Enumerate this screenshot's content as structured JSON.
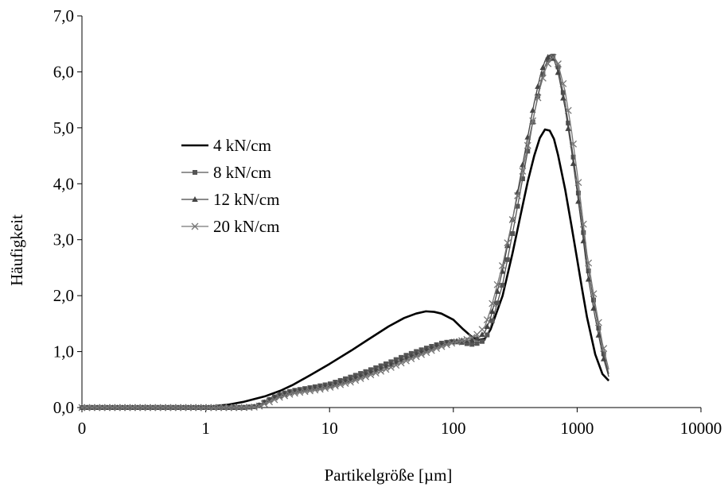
{
  "chart_data": {
    "type": "line",
    "title": "",
    "xlabel": "Partikelgröße [µm]",
    "ylabel": "Häufigkeit",
    "x_scale": "log",
    "xlim": [
      0.1,
      10000
    ],
    "ylim": [
      0,
      7
    ],
    "x_ticks": [
      {
        "value": 0.1,
        "label": "0"
      },
      {
        "value": 1,
        "label": "1"
      },
      {
        "value": 10,
        "label": "10"
      },
      {
        "value": 100,
        "label": "100"
      },
      {
        "value": 1000,
        "label": "1000"
      },
      {
        "value": 10000,
        "label": "10000"
      }
    ],
    "y_ticks": [
      {
        "value": 0,
        "label": "0,0"
      },
      {
        "value": 1,
        "label": "1,0"
      },
      {
        "value": 2,
        "label": "2,0"
      },
      {
        "value": 3,
        "label": "3,0"
      },
      {
        "value": 4,
        "label": "4,0"
      },
      {
        "value": 5,
        "label": "5,0"
      },
      {
        "value": 6,
        "label": "6,0"
      },
      {
        "value": 7,
        "label": "7,0"
      }
    ],
    "grid": false,
    "legend_position": "middle-left",
    "series": [
      {
        "name": "4 kN/cm",
        "marker": "none",
        "color": "#000000",
        "line_width": 2.6,
        "points": [
          [
            0.1,
            0
          ],
          [
            0.5,
            0
          ],
          [
            1,
            0.01
          ],
          [
            1.5,
            0.05
          ],
          [
            2,
            0.1
          ],
          [
            3,
            0.2
          ],
          [
            4,
            0.3
          ],
          [
            5,
            0.4
          ],
          [
            7,
            0.58
          ],
          [
            10,
            0.78
          ],
          [
            15,
            1.02
          ],
          [
            20,
            1.2
          ],
          [
            30,
            1.45
          ],
          [
            40,
            1.6
          ],
          [
            50,
            1.68
          ],
          [
            60,
            1.72
          ],
          [
            70,
            1.71
          ],
          [
            80,
            1.68
          ],
          [
            100,
            1.57
          ],
          [
            120,
            1.4
          ],
          [
            140,
            1.27
          ],
          [
            160,
            1.21
          ],
          [
            180,
            1.23
          ],
          [
            200,
            1.4
          ],
          [
            250,
            2.0
          ],
          [
            300,
            2.75
          ],
          [
            350,
            3.45
          ],
          [
            400,
            4.05
          ],
          [
            450,
            4.5
          ],
          [
            500,
            4.82
          ],
          [
            550,
            4.97
          ],
          [
            600,
            4.95
          ],
          [
            650,
            4.8
          ],
          [
            700,
            4.52
          ],
          [
            800,
            3.9
          ],
          [
            900,
            3.25
          ],
          [
            1000,
            2.65
          ],
          [
            1100,
            2.1
          ],
          [
            1200,
            1.62
          ],
          [
            1400,
            0.95
          ],
          [
            1600,
            0.6
          ],
          [
            1800,
            0.48
          ]
        ]
      },
      {
        "name": "8 kN/cm",
        "marker": "square",
        "color": "#555555",
        "line_width": 1.3,
        "points": [
          [
            0.1,
            0
          ],
          [
            0.5,
            0
          ],
          [
            1,
            0
          ],
          [
            2,
            0
          ],
          [
            2.6,
            0.02
          ],
          [
            3,
            0.1
          ],
          [
            3.5,
            0.18
          ],
          [
            4,
            0.24
          ],
          [
            5,
            0.3
          ],
          [
            6,
            0.33
          ],
          [
            8,
            0.38
          ],
          [
            10,
            0.42
          ],
          [
            15,
            0.55
          ],
          [
            20,
            0.65
          ],
          [
            30,
            0.8
          ],
          [
            40,
            0.92
          ],
          [
            50,
            1.0
          ],
          [
            60,
            1.06
          ],
          [
            70,
            1.11
          ],
          [
            80,
            1.15
          ],
          [
            90,
            1.17
          ],
          [
            100,
            1.18
          ],
          [
            110,
            1.17
          ],
          [
            120,
            1.16
          ],
          [
            130,
            1.14
          ],
          [
            140,
            1.13
          ],
          [
            150,
            1.13
          ],
          [
            160,
            1.16
          ],
          [
            180,
            1.2
          ],
          [
            200,
            1.45
          ],
          [
            250,
            2.2
          ],
          [
            300,
            3.1
          ],
          [
            350,
            3.9
          ],
          [
            400,
            4.6
          ],
          [
            450,
            5.25
          ],
          [
            500,
            5.75
          ],
          [
            550,
            6.1
          ],
          [
            600,
            6.28
          ],
          [
            650,
            6.28
          ],
          [
            700,
            6.1
          ],
          [
            800,
            5.45
          ],
          [
            900,
            4.7
          ],
          [
            1000,
            4.0
          ],
          [
            1100,
            3.3
          ],
          [
            1200,
            2.6
          ],
          [
            1400,
            1.75
          ],
          [
            1600,
            1.05
          ],
          [
            1800,
            0.6
          ]
        ]
      },
      {
        "name": "12 kN/cm",
        "marker": "triangle",
        "color": "#444444",
        "line_width": 1.3,
        "points": [
          [
            0.1,
            0
          ],
          [
            0.5,
            0
          ],
          [
            1,
            0
          ],
          [
            2,
            0
          ],
          [
            2.6,
            0.02
          ],
          [
            3,
            0.1
          ],
          [
            3.5,
            0.17
          ],
          [
            4,
            0.22
          ],
          [
            5,
            0.28
          ],
          [
            6,
            0.31
          ],
          [
            8,
            0.35
          ],
          [
            10,
            0.39
          ],
          [
            15,
            0.5
          ],
          [
            20,
            0.6
          ],
          [
            30,
            0.75
          ],
          [
            40,
            0.87
          ],
          [
            50,
            0.95
          ],
          [
            60,
            1.02
          ],
          [
            70,
            1.08
          ],
          [
            80,
            1.13
          ],
          [
            90,
            1.16
          ],
          [
            100,
            1.18
          ],
          [
            110,
            1.19
          ],
          [
            120,
            1.2
          ],
          [
            130,
            1.2
          ],
          [
            140,
            1.2
          ],
          [
            150,
            1.22
          ],
          [
            160,
            1.25
          ],
          [
            180,
            1.35
          ],
          [
            200,
            1.6
          ],
          [
            250,
            2.45
          ],
          [
            300,
            3.35
          ],
          [
            350,
            4.15
          ],
          [
            400,
            4.85
          ],
          [
            450,
            5.45
          ],
          [
            500,
            5.9
          ],
          [
            550,
            6.2
          ],
          [
            600,
            6.3
          ],
          [
            650,
            6.22
          ],
          [
            700,
            6.0
          ],
          [
            800,
            5.35
          ],
          [
            900,
            4.6
          ],
          [
            1000,
            3.85
          ],
          [
            1100,
            3.15
          ],
          [
            1200,
            2.45
          ],
          [
            1400,
            1.6
          ],
          [
            1600,
            0.95
          ],
          [
            1800,
            0.55
          ]
        ]
      },
      {
        "name": "20 kN/cm",
        "marker": "x",
        "color": "#777777",
        "line_width": 1.3,
        "points": [
          [
            0.1,
            0
          ],
          [
            0.5,
            0
          ],
          [
            1,
            0
          ],
          [
            2,
            0
          ],
          [
            2.6,
            0.01
          ],
          [
            3,
            0.07
          ],
          [
            3.5,
            0.13
          ],
          [
            4,
            0.19
          ],
          [
            5,
            0.25
          ],
          [
            6,
            0.28
          ],
          [
            8,
            0.32
          ],
          [
            10,
            0.36
          ],
          [
            15,
            0.46
          ],
          [
            20,
            0.56
          ],
          [
            30,
            0.7
          ],
          [
            40,
            0.82
          ],
          [
            50,
            0.91
          ],
          [
            60,
            0.98
          ],
          [
            70,
            1.04
          ],
          [
            80,
            1.09
          ],
          [
            90,
            1.13
          ],
          [
            100,
            1.16
          ],
          [
            110,
            1.18
          ],
          [
            120,
            1.2
          ],
          [
            130,
            1.22
          ],
          [
            140,
            1.25
          ],
          [
            150,
            1.28
          ],
          [
            160,
            1.33
          ],
          [
            180,
            1.45
          ],
          [
            200,
            1.75
          ],
          [
            250,
            2.55
          ],
          [
            300,
            3.35
          ],
          [
            350,
            4.05
          ],
          [
            400,
            4.7
          ],
          [
            450,
            5.25
          ],
          [
            500,
            5.7
          ],
          [
            550,
            6.02
          ],
          [
            600,
            6.22
          ],
          [
            650,
            6.27
          ],
          [
            700,
            6.15
          ],
          [
            800,
            5.65
          ],
          [
            900,
            4.95
          ],
          [
            1000,
            4.2
          ],
          [
            1100,
            3.45
          ],
          [
            1200,
            2.75
          ],
          [
            1400,
            1.85
          ],
          [
            1600,
            1.15
          ],
          [
            1800,
            0.68
          ]
        ]
      }
    ]
  }
}
